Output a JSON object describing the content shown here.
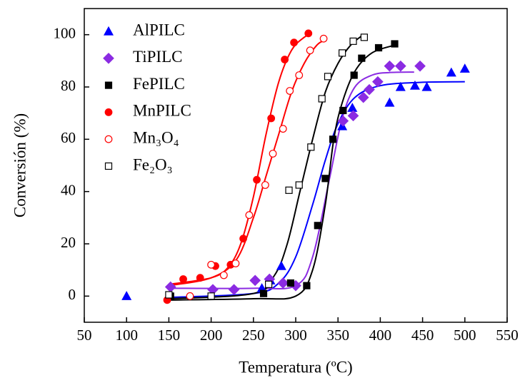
{
  "chart_data": {
    "type": "scatter",
    "x_label": "Temperatura (ºC)",
    "y_label": "Conversión (%)",
    "xlim": [
      50,
      550
    ],
    "xticks": [
      50,
      100,
      150,
      200,
      250,
      300,
      350,
      400,
      450,
      500,
      550
    ],
    "ylim": [
      -10,
      110
    ],
    "yticks": [
      0,
      20,
      40,
      60,
      80,
      100
    ],
    "legend": "top-left",
    "series": [
      {
        "name": "AlPILC",
        "color": "#0000ff",
        "marker": "triangle",
        "filled": true,
        "x": [
          100,
          260,
          270,
          283,
          355,
          367,
          411,
          424,
          441,
          455,
          484,
          500
        ],
        "values": [
          0,
          3,
          6,
          11.5,
          65,
          72,
          74,
          80,
          80.5,
          80,
          85.5,
          87
        ],
        "fit": {
          "x": [
            150,
            250,
            280,
            300,
            320,
            335,
            350,
            370,
            400,
            450,
            500
          ],
          "values": [
            -0.5,
            1,
            5,
            15,
            35,
            52,
            66,
            76,
            80.5,
            81.8,
            82
          ]
        }
      },
      {
        "name": "TiPILC",
        "color": "#8b2be2",
        "marker": "diamond",
        "filled": true,
        "x": [
          152,
          202,
          227,
          252,
          269,
          285,
          300,
          356,
          368,
          380,
          387,
          397,
          411,
          424,
          447
        ],
        "values": [
          3.5,
          2.5,
          2.5,
          6,
          6.5,
          5,
          4,
          67,
          69,
          76,
          79,
          82,
          88,
          88,
          88
        ],
        "fit": {
          "x": [
            150,
            250,
            300,
            320,
            340,
            355,
            370,
            390,
            410,
            440
          ],
          "values": [
            3,
            3,
            4,
            15,
            45,
            68,
            80,
            84.5,
            85.5,
            85.7
          ]
        }
      },
      {
        "name": "FePILC",
        "color": "#000000",
        "marker": "square",
        "filled": true,
        "x": [
          152,
          262,
          294,
          313,
          326,
          335,
          344,
          356,
          369,
          378,
          398,
          417
        ],
        "values": [
          0,
          1,
          5,
          4,
          27,
          45,
          60,
          71,
          84.5,
          91,
          95,
          96.5
        ],
        "fit": {
          "x": [
            150,
            250,
            300,
            320,
            335,
            345,
            355,
            370,
            390,
            417
          ],
          "values": [
            -1.5,
            -1,
            0,
            10,
            35,
            60,
            74,
            86,
            93,
            96
          ]
        }
      },
      {
        "name": "MnPILC",
        "color": "#ff0000",
        "marker": "circle",
        "filled": true,
        "x": [
          148,
          167,
          187,
          205,
          223,
          238,
          254,
          271,
          287,
          298,
          315
        ],
        "values": [
          -1.5,
          6.5,
          7,
          11.5,
          12,
          22,
          44.5,
          68,
          90.5,
          97,
          100.5
        ],
        "fit": {
          "x": [
            150,
            200,
            220,
            235,
            250,
            265,
            280,
            295,
            310,
            318
          ],
          "values": [
            4.5,
            7,
            11,
            20,
            38,
            62,
            82,
            94,
            99,
            100
          ]
        }
      },
      {
        "name": "Mn₃O₄",
        "color": "#ff0000",
        "marker": "circle",
        "filled": false,
        "x": [
          175,
          200,
          215,
          229,
          245,
          264,
          273,
          285,
          293,
          304,
          317,
          333
        ],
        "values": [
          0,
          12,
          8,
          12.5,
          31,
          42.5,
          54.5,
          64,
          78.5,
          84.5,
          94,
          98.5
        ],
        "fit": {
          "x": [
            150,
            200,
            230,
            250,
            265,
            280,
            295,
            310,
            325,
            335
          ],
          "values": [
            4,
            7,
            14,
            30,
            46,
            62,
            78,
            89,
            96,
            98
          ]
        }
      },
      {
        "name": "Fe₂O₃",
        "color": "#000000",
        "marker": "square",
        "filled": false,
        "x": [
          150,
          200,
          268,
          292,
          304,
          318,
          331,
          338,
          355,
          368,
          381
        ],
        "values": [
          0.5,
          0,
          4.5,
          40.5,
          42.5,
          57,
          75.5,
          84,
          93,
          97.5,
          99
        ],
        "fit": {
          "x": [
            150,
            250,
            275,
            290,
            305,
            320,
            335,
            350,
            365,
            380
          ],
          "values": [
            -1,
            1,
            8,
            20,
            40,
            60,
            78,
            89,
            96,
            100
          ]
        }
      }
    ]
  }
}
